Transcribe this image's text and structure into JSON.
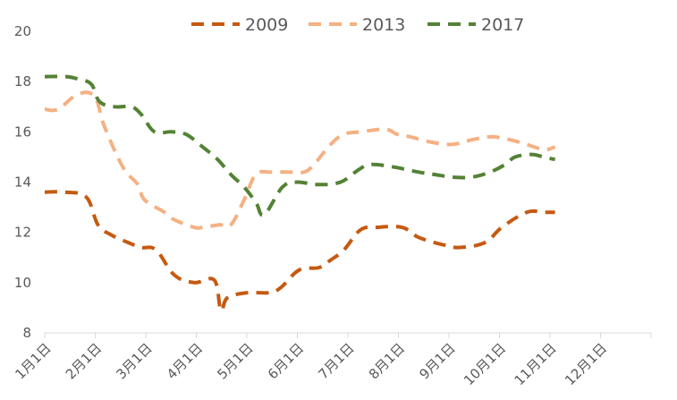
{
  "chart_data": {
    "type": "line",
    "title": "",
    "xlabel": "",
    "ylabel": "",
    "ylim": [
      8,
      20
    ],
    "yticks": [
      8,
      10,
      12,
      14,
      16,
      18,
      20
    ],
    "x_labels": [
      "1月1日",
      "2月1日",
      "3月1日",
      "4月1日",
      "5月1日",
      "6月1日",
      "7月1日",
      "8月1日",
      "9月1日",
      "10月1日",
      "11月1日",
      "12月1日"
    ],
    "x_day_range": [
      0,
      364
    ],
    "grid": false,
    "legend_position": "top",
    "series": [
      {
        "name": "2009",
        "color": "#c55a11",
        "points": [
          [
            0,
            13.6
          ],
          [
            12,
            13.6
          ],
          [
            25,
            13.4
          ],
          [
            32,
            12.3
          ],
          [
            40,
            11.9
          ],
          [
            50,
            11.6
          ],
          [
            58,
            11.4
          ],
          [
            67,
            11.3
          ],
          [
            78,
            10.3
          ],
          [
            90,
            10.0
          ],
          [
            102,
            10.1
          ],
          [
            106,
            8.9
          ],
          [
            110,
            9.4
          ],
          [
            122,
            9.6
          ],
          [
            135,
            9.6
          ],
          [
            142,
            9.8
          ],
          [
            153,
            10.5
          ],
          [
            165,
            10.6
          ],
          [
            172,
            10.9
          ],
          [
            180,
            11.3
          ],
          [
            190,
            12.1
          ],
          [
            200,
            12.2
          ],
          [
            215,
            12.2
          ],
          [
            225,
            11.8
          ],
          [
            240,
            11.5
          ],
          [
            250,
            11.4
          ],
          [
            265,
            11.6
          ],
          [
            275,
            12.2
          ],
          [
            290,
            12.8
          ],
          [
            300,
            12.8
          ],
          [
            307,
            12.8
          ]
        ]
      },
      {
        "name": "2013",
        "color": "#f4b183",
        "points": [
          [
            0,
            16.9
          ],
          [
            8,
            16.9
          ],
          [
            20,
            17.5
          ],
          [
            30,
            17.4
          ],
          [
            36,
            16.2
          ],
          [
            47,
            14.6
          ],
          [
            56,
            13.9
          ],
          [
            60,
            13.3
          ],
          [
            72,
            12.8
          ],
          [
            78,
            12.5
          ],
          [
            90,
            12.2
          ],
          [
            95,
            12.2
          ],
          [
            105,
            12.3
          ],
          [
            112,
            12.3
          ],
          [
            120,
            13.3
          ],
          [
            127,
            14.3
          ],
          [
            136,
            14.4
          ],
          [
            147,
            14.4
          ],
          [
            156,
            14.4
          ],
          [
            162,
            14.7
          ],
          [
            172,
            15.5
          ],
          [
            180,
            15.9
          ],
          [
            190,
            16.0
          ],
          [
            205,
            16.1
          ],
          [
            212,
            15.9
          ],
          [
            220,
            15.8
          ],
          [
            232,
            15.6
          ],
          [
            245,
            15.5
          ],
          [
            258,
            15.7
          ],
          [
            270,
            15.8
          ],
          [
            285,
            15.6
          ],
          [
            300,
            15.3
          ],
          [
            307,
            15.4
          ]
        ]
      },
      {
        "name": "2017",
        "color": "#548235",
        "points": [
          [
            0,
            18.2
          ],
          [
            13,
            18.2
          ],
          [
            20,
            18.1
          ],
          [
            28,
            17.9
          ],
          [
            33,
            17.2
          ],
          [
            42,
            17.0
          ],
          [
            52,
            17.0
          ],
          [
            58,
            16.7
          ],
          [
            66,
            16.0
          ],
          [
            76,
            16.0
          ],
          [
            85,
            15.9
          ],
          [
            95,
            15.4
          ],
          [
            104,
            14.9
          ],
          [
            112,
            14.3
          ],
          [
            120,
            13.8
          ],
          [
            127,
            13.2
          ],
          [
            132,
            12.7
          ],
          [
            143,
            13.8
          ],
          [
            152,
            14.0
          ],
          [
            164,
            13.9
          ],
          [
            178,
            14.0
          ],
          [
            189,
            14.5
          ],
          [
            196,
            14.7
          ],
          [
            210,
            14.6
          ],
          [
            225,
            14.4
          ],
          [
            235,
            14.3
          ],
          [
            245,
            14.2
          ],
          [
            257,
            14.2
          ],
          [
            268,
            14.4
          ],
          [
            277,
            14.7
          ],
          [
            283,
            15.0
          ],
          [
            293,
            15.1
          ],
          [
            300,
            15.0
          ],
          [
            307,
            14.9
          ]
        ]
      }
    ]
  }
}
